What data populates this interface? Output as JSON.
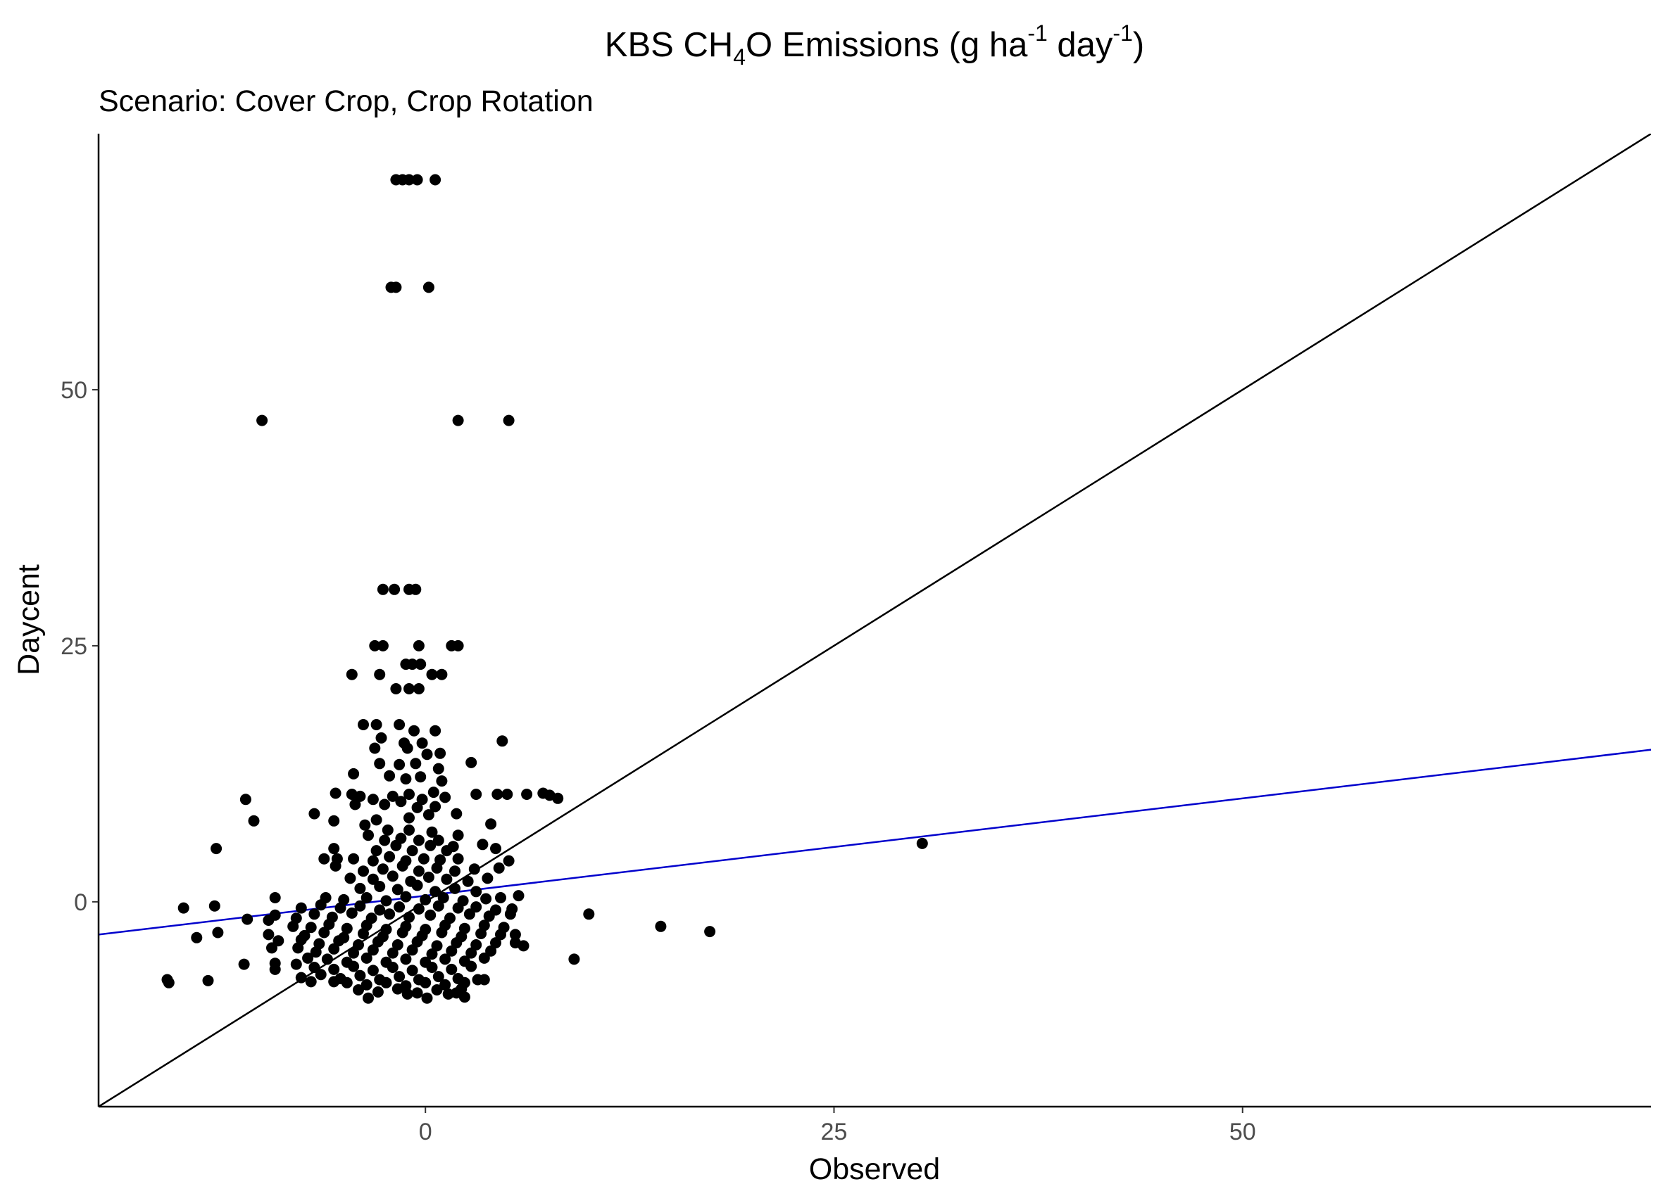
{
  "chart_data": {
    "type": "scatter",
    "title": {
      "prefix": "KBS CH",
      "sub": "4",
      "mid": "O Emissions (g ha",
      "sup1": "-1",
      "mid2": " day",
      "sup2": "-1",
      "suffix": ")"
    },
    "subtitle": "Scenario: Cover Crop, Crop Rotation",
    "xlabel": "Observed",
    "ylabel": "Daycent",
    "xlim": [
      -20,
      75
    ],
    "ylim": [
      -20,
      75
    ],
    "x_ticks": [
      0,
      25,
      50
    ],
    "y_ticks": [
      0,
      25,
      50
    ],
    "grid": false,
    "legend": "none",
    "colors": {
      "points": "#000000",
      "identity_line": "#000000",
      "fit_line": "#0000cc",
      "axis": "#000000"
    },
    "identity_line": {
      "slope": 1,
      "intercept": 0
    },
    "fit_line": {
      "slope": 0.19,
      "intercept": 0.6
    },
    "points": [
      [
        -1.8,
        70.5
      ],
      [
        -1.4,
        70.5
      ],
      [
        -1.0,
        70.5
      ],
      [
        -0.5,
        70.5
      ],
      [
        0.6,
        70.5
      ],
      [
        -2.1,
        60.0
      ],
      [
        -1.8,
        60.0
      ],
      [
        0.2,
        60.0
      ],
      [
        -10.0,
        47.0
      ],
      [
        2.0,
        47.0
      ],
      [
        5.1,
        47.0
      ],
      [
        -2.6,
        30.5
      ],
      [
        -1.9,
        30.5
      ],
      [
        -1.0,
        30.5
      ],
      [
        -0.6,
        30.5
      ],
      [
        -3.1,
        25.0
      ],
      [
        -2.6,
        25.0
      ],
      [
        -0.4,
        25.0
      ],
      [
        1.6,
        25.0
      ],
      [
        2.0,
        25.0
      ],
      [
        -1.2,
        23.2
      ],
      [
        -0.8,
        23.2
      ],
      [
        -0.3,
        23.2
      ],
      [
        -4.5,
        22.2
      ],
      [
        -2.8,
        22.2
      ],
      [
        0.4,
        22.2
      ],
      [
        1.0,
        22.2
      ],
      [
        -1.8,
        20.8
      ],
      [
        -1.0,
        20.8
      ],
      [
        -0.4,
        20.8
      ],
      [
        -3.8,
        17.3
      ],
      [
        -3.0,
        17.3
      ],
      [
        -1.6,
        17.3
      ],
      [
        -0.7,
        16.7
      ],
      [
        0.6,
        16.7
      ],
      [
        -2.7,
        16.0
      ],
      [
        -1.3,
        15.5
      ],
      [
        -0.2,
        15.5
      ],
      [
        4.7,
        15.7
      ],
      [
        -3.1,
        15.0
      ],
      [
        -1.1,
        15.0
      ],
      [
        0.1,
        14.4
      ],
      [
        0.9,
        14.5
      ],
      [
        -2.8,
        13.5
      ],
      [
        -1.6,
        13.4
      ],
      [
        -0.6,
        13.5
      ],
      [
        0.8,
        13.0
      ],
      [
        2.8,
        13.6
      ],
      [
        -4.4,
        12.5
      ],
      [
        -2.2,
        12.3
      ],
      [
        -1.2,
        12.0
      ],
      [
        -0.3,
        12.2
      ],
      [
        1.0,
        11.8
      ],
      [
        -11.0,
        10.0
      ],
      [
        -5.5,
        10.6
      ],
      [
        -4.5,
        10.5
      ],
      [
        -4.0,
        10.3
      ],
      [
        -3.2,
        10.0
      ],
      [
        -2.0,
        10.3
      ],
      [
        -1.0,
        10.5
      ],
      [
        -0.2,
        10.0
      ],
      [
        0.5,
        10.7
      ],
      [
        1.2,
        10.2
      ],
      [
        3.1,
        10.5
      ],
      [
        4.4,
        10.5
      ],
      [
        5.0,
        10.5
      ],
      [
        6.2,
        10.5
      ],
      [
        7.2,
        10.6
      ],
      [
        7.6,
        10.4
      ],
      [
        8.1,
        10.1
      ],
      [
        -4.3,
        9.5
      ],
      [
        -2.5,
        9.5
      ],
      [
        -1.5,
        9.8
      ],
      [
        -0.5,
        9.2
      ],
      [
        0.6,
        9.3
      ],
      [
        1.9,
        8.6
      ],
      [
        -6.8,
        8.6
      ],
      [
        -3.0,
        8.0
      ],
      [
        -1.0,
        8.2
      ],
      [
        0.2,
        8.5
      ],
      [
        -10.5,
        7.9
      ],
      [
        -5.6,
        7.9
      ],
      [
        -3.7,
        7.5
      ],
      [
        -2.3,
        7.0
      ],
      [
        -1.0,
        7.0
      ],
      [
        0.4,
        6.8
      ],
      [
        2.0,
        6.5
      ],
      [
        4.0,
        7.6
      ],
      [
        -3.5,
        6.5
      ],
      [
        -2.5,
        6.0
      ],
      [
        -1.5,
        6.2
      ],
      [
        -0.4,
        6.0
      ],
      [
        0.8,
        6.0
      ],
      [
        1.7,
        5.4
      ],
      [
        -12.8,
        5.2
      ],
      [
        -5.6,
        5.2
      ],
      [
        -3.0,
        5.0
      ],
      [
        -1.8,
        5.5
      ],
      [
        -0.8,
        5.0
      ],
      [
        0.3,
        5.5
      ],
      [
        1.3,
        5.0
      ],
      [
        3.5,
        5.6
      ],
      [
        4.3,
        5.2
      ],
      [
        -6.2,
        4.2
      ],
      [
        -5.4,
        4.2
      ],
      [
        -4.4,
        4.2
      ],
      [
        -3.2,
        4.0
      ],
      [
        -2.2,
        4.4
      ],
      [
        -1.2,
        4.0
      ],
      [
        -0.1,
        4.2
      ],
      [
        0.9,
        4.1
      ],
      [
        2.0,
        4.2
      ],
      [
        5.1,
        4.0
      ],
      [
        -5.5,
        3.5
      ],
      [
        -3.8,
        3.0
      ],
      [
        -2.6,
        3.2
      ],
      [
        -1.4,
        3.5
      ],
      [
        -0.4,
        3.0
      ],
      [
        0.7,
        3.3
      ],
      [
        1.8,
        3.0
      ],
      [
        3.0,
        3.2
      ],
      [
        4.5,
        3.3
      ],
      [
        -4.6,
        2.3
      ],
      [
        -3.2,
        2.2
      ],
      [
        -2.0,
        2.5
      ],
      [
        -0.9,
        2.0
      ],
      [
        0.2,
        2.4
      ],
      [
        1.3,
        2.2
      ],
      [
        2.6,
        2.0
      ],
      [
        3.8,
        2.3
      ],
      [
        -4.0,
        1.3
      ],
      [
        -2.8,
        1.5
      ],
      [
        -1.7,
        1.2
      ],
      [
        -0.5,
        1.6
      ],
      [
        0.6,
        1.0
      ],
      [
        1.8,
        1.3
      ],
      [
        3.1,
        1.0
      ],
      [
        -9.2,
        0.4
      ],
      [
        -6.1,
        0.4
      ],
      [
        -5.0,
        0.2
      ],
      [
        -3.6,
        0.4
      ],
      [
        -2.4,
        0.1
      ],
      [
        -1.2,
        0.5
      ],
      [
        0.0,
        0.2
      ],
      [
        1.1,
        0.4
      ],
      [
        2.3,
        0.1
      ],
      [
        3.7,
        0.3
      ],
      [
        4.6,
        0.4
      ],
      [
        5.7,
        0.6
      ],
      [
        -14.8,
        -0.6
      ],
      [
        -12.9,
        -0.4
      ],
      [
        -7.6,
        -0.6
      ],
      [
        -6.4,
        -0.3
      ],
      [
        -5.2,
        -0.6
      ],
      [
        -4.0,
        -0.4
      ],
      [
        -2.8,
        -0.8
      ],
      [
        -1.6,
        -0.5
      ],
      [
        -0.4,
        -0.7
      ],
      [
        0.8,
        -0.4
      ],
      [
        2.0,
        -0.6
      ],
      [
        3.1,
        -0.5
      ],
      [
        4.3,
        -0.8
      ],
      [
        5.3,
        -0.7
      ],
      [
        10.0,
        -1.2
      ],
      [
        -10.9,
        -1.7
      ],
      [
        -9.6,
        -1.8
      ],
      [
        -9.2,
        -1.3
      ],
      [
        -7.9,
        -1.6
      ],
      [
        -6.8,
        -1.2
      ],
      [
        -5.7,
        -1.5
      ],
      [
        -4.5,
        -1.1
      ],
      [
        -3.3,
        -1.6
      ],
      [
        -2.2,
        -1.2
      ],
      [
        -1.0,
        -1.5
      ],
      [
        0.3,
        -1.3
      ],
      [
        1.5,
        -1.6
      ],
      [
        2.7,
        -1.2
      ],
      [
        3.9,
        -1.4
      ],
      [
        5.2,
        -1.2
      ],
      [
        -8.1,
        -2.4
      ],
      [
        -7.0,
        -2.5
      ],
      [
        -5.9,
        -2.2
      ],
      [
        -4.8,
        -2.6
      ],
      [
        -3.6,
        -2.3
      ],
      [
        -2.4,
        -2.7
      ],
      [
        -1.2,
        -2.4
      ],
      [
        0.0,
        -2.7
      ],
      [
        1.2,
        -2.3
      ],
      [
        2.4,
        -2.6
      ],
      [
        3.6,
        -2.3
      ],
      [
        4.8,
        -2.5
      ],
      [
        14.4,
        -2.4
      ],
      [
        -12.7,
        -3.0
      ],
      [
        -9.6,
        -3.2
      ],
      [
        -7.4,
        -3.3
      ],
      [
        -6.2,
        -3.0
      ],
      [
        -5.0,
        -3.5
      ],
      [
        -3.8,
        -3.1
      ],
      [
        -2.6,
        -3.4
      ],
      [
        -1.4,
        -3.0
      ],
      [
        -0.2,
        -3.3
      ],
      [
        1.0,
        -3.0
      ],
      [
        2.2,
        -3.4
      ],
      [
        3.4,
        -3.1
      ],
      [
        4.6,
        -3.2
      ],
      [
        5.5,
        -3.2
      ],
      [
        17.4,
        -2.9
      ],
      [
        -14.0,
        -3.5
      ],
      [
        -9.0,
        -3.8
      ],
      [
        -7.6,
        -3.7
      ],
      [
        -6.5,
        -4.1
      ],
      [
        -5.3,
        -3.8
      ],
      [
        -4.1,
        -4.2
      ],
      [
        -2.9,
        -3.9
      ],
      [
        -1.7,
        -4.2
      ],
      [
        -0.5,
        -3.9
      ],
      [
        0.7,
        -4.3
      ],
      [
        1.9,
        -4.0
      ],
      [
        3.1,
        -4.2
      ],
      [
        4.3,
        -4.0
      ],
      [
        5.5,
        -4.0
      ],
      [
        6.0,
        -4.3
      ],
      [
        -9.4,
        -4.5
      ],
      [
        -7.8,
        -4.5
      ],
      [
        -6.7,
        -4.9
      ],
      [
        -5.6,
        -4.6
      ],
      [
        -4.4,
        -5.0
      ],
      [
        -3.2,
        -4.7
      ],
      [
        -2.0,
        -5.0
      ],
      [
        -0.8,
        -4.7
      ],
      [
        0.4,
        -5.1
      ],
      [
        1.6,
        -4.8
      ],
      [
        2.8,
        -5.0
      ],
      [
        4.0,
        -4.8
      ],
      [
        -7.2,
        -5.5
      ],
      [
        -6.0,
        -5.6
      ],
      [
        -4.8,
        -5.9
      ],
      [
        -3.6,
        -5.5
      ],
      [
        -2.4,
        -5.9
      ],
      [
        -1.2,
        -5.6
      ],
      [
        0.0,
        -5.9
      ],
      [
        1.2,
        -5.6
      ],
      [
        2.4,
        -5.8
      ],
      [
        3.6,
        -5.5
      ],
      [
        9.1,
        -5.6
      ],
      [
        -11.1,
        -6.1
      ],
      [
        -9.2,
        -6.0
      ],
      [
        -7.9,
        -6.1
      ],
      [
        -6.8,
        -6.4
      ],
      [
        -5.6,
        -6.6
      ],
      [
        -4.4,
        -6.3
      ],
      [
        -3.2,
        -6.7
      ],
      [
        -2.0,
        -6.4
      ],
      [
        -0.8,
        -6.7
      ],
      [
        0.4,
        -6.4
      ],
      [
        1.6,
        -6.6
      ],
      [
        2.8,
        -6.3
      ],
      [
        -9.2,
        -6.6
      ],
      [
        -7.6,
        -7.4
      ],
      [
        -6.4,
        -7.1
      ],
      [
        -5.2,
        -7.5
      ],
      [
        -4.0,
        -7.2
      ],
      [
        -2.8,
        -7.6
      ],
      [
        -1.6,
        -7.3
      ],
      [
        -0.4,
        -7.6
      ],
      [
        0.8,
        -7.3
      ],
      [
        2.0,
        -7.5
      ],
      [
        3.2,
        -7.6
      ],
      [
        3.6,
        -7.6
      ],
      [
        -15.8,
        -7.6
      ],
      [
        -15.7,
        -7.9
      ],
      [
        -13.3,
        -7.7
      ],
      [
        -7.0,
        -7.8
      ],
      [
        -5.6,
        -7.8
      ],
      [
        -4.8,
        -7.9
      ],
      [
        -3.6,
        -8.1
      ],
      [
        -2.4,
        -7.9
      ],
      [
        -1.2,
        -8.2
      ],
      [
        0.0,
        -7.9
      ],
      [
        1.2,
        -8.1
      ],
      [
        2.4,
        -7.9
      ],
      [
        -4.1,
        -8.6
      ],
      [
        -2.9,
        -8.8
      ],
      [
        -1.7,
        -8.5
      ],
      [
        -0.5,
        -8.9
      ],
      [
        0.7,
        -8.6
      ],
      [
        1.9,
        -8.9
      ],
      [
        2.2,
        -8.5
      ],
      [
        -3.5,
        -9.4
      ],
      [
        -1.1,
        -9.0
      ],
      [
        0.1,
        -9.4
      ],
      [
        1.4,
        -9.0
      ],
      [
        2.4,
        -9.3
      ],
      [
        30.4,
        5.7
      ]
    ]
  }
}
